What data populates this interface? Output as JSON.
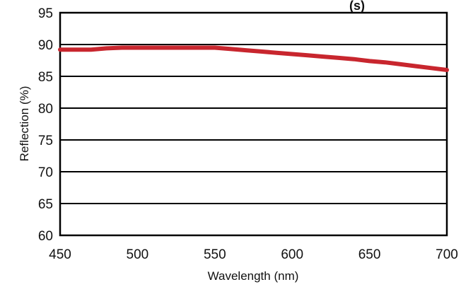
{
  "chart_data": {
    "type": "line",
    "title_fragment": "(s)",
    "xlabel": "Wavelength (nm)",
    "ylabel": "Reflection (%)",
    "xlim": [
      450,
      700
    ],
    "ylim": [
      60,
      95
    ],
    "x_ticks": [
      "450",
      "500",
      "550",
      "600",
      "650",
      "700"
    ],
    "y_ticks": [
      "60",
      "65",
      "70",
      "75",
      "80",
      "85",
      "90",
      "95"
    ],
    "grid": "horizontal",
    "series": [
      {
        "color": "#c8262e",
        "x": [
          450,
          460,
          470,
          480,
          490,
          500,
          510,
          520,
          530,
          540,
          550,
          560,
          570,
          580,
          590,
          600,
          610,
          620,
          630,
          640,
          650,
          660,
          670,
          680,
          690,
          700
        ],
        "y": [
          89.2,
          89.2,
          89.2,
          89.4,
          89.5,
          89.5,
          89.5,
          89.5,
          89.5,
          89.5,
          89.5,
          89.3,
          89.1,
          88.9,
          88.7,
          88.5,
          88.3,
          88.1,
          87.9,
          87.7,
          87.4,
          87.2,
          86.9,
          86.6,
          86.3,
          86.0
        ]
      }
    ]
  }
}
